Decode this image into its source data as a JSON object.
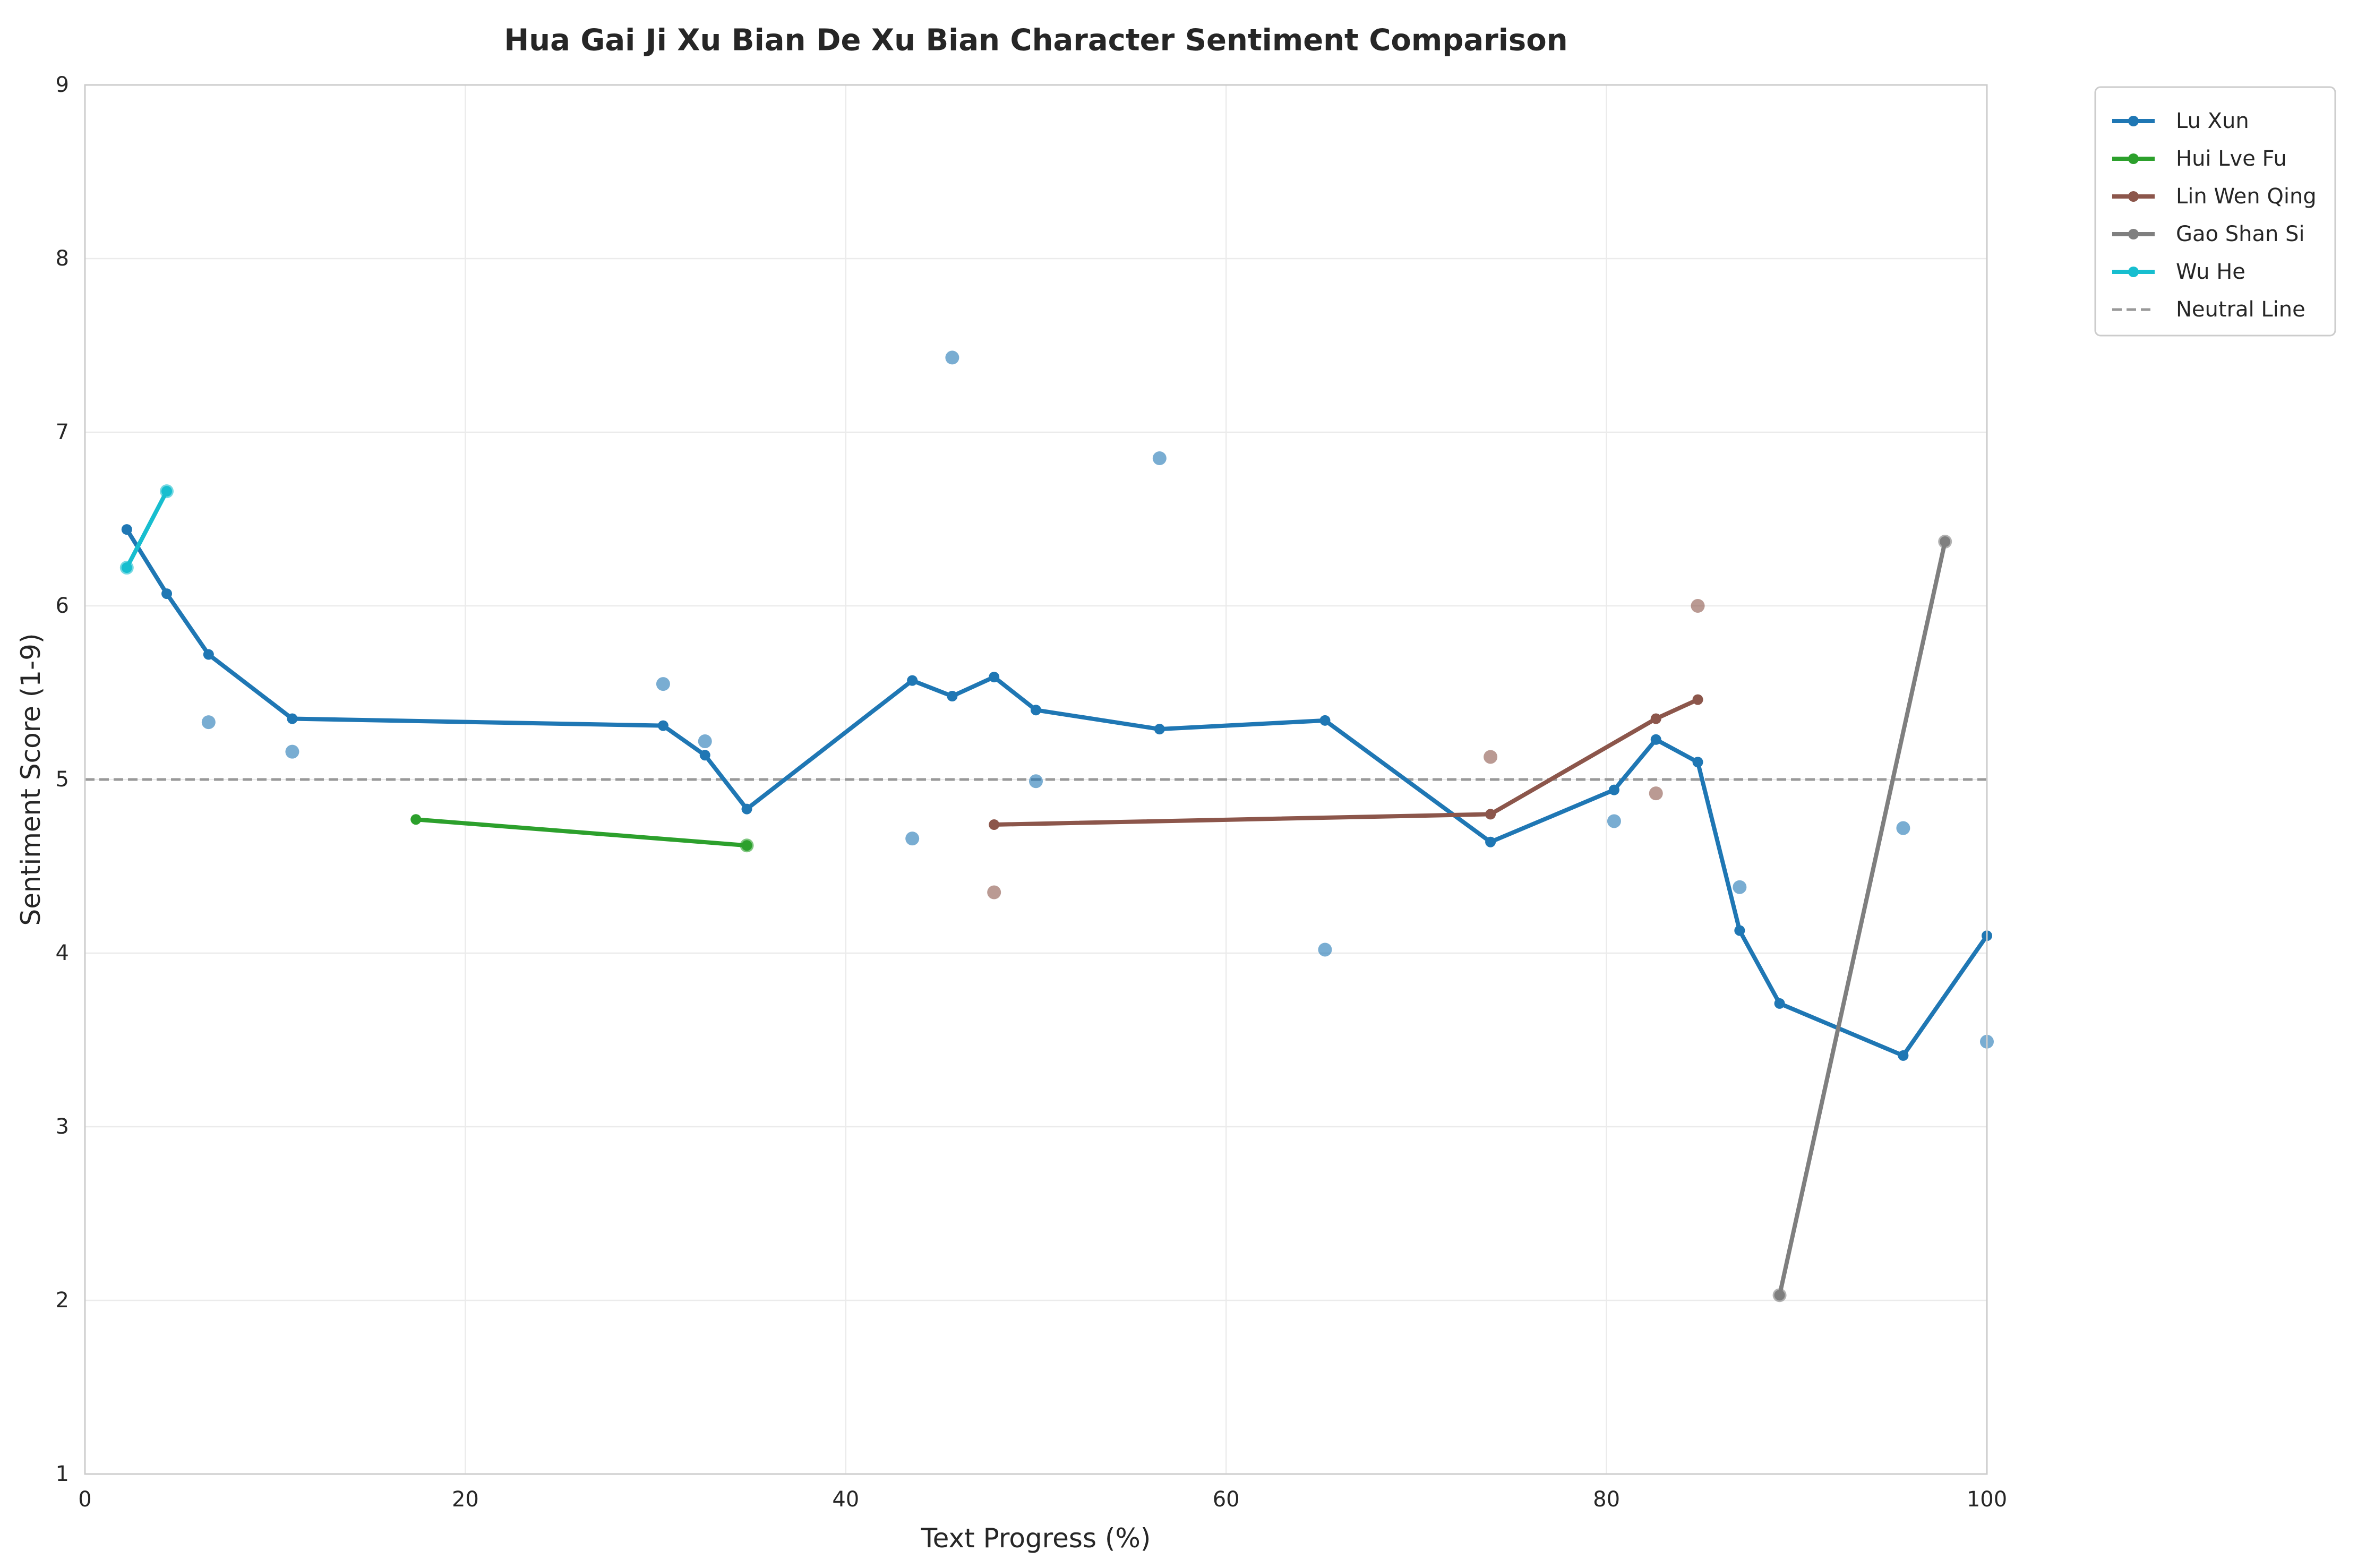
{
  "chart_data": {
    "type": "line",
    "title": "Hua Gai Ji Xu Bian De Xu Bian Character Sentiment Comparison",
    "xlabel": "Text Progress (%)",
    "ylabel": "Sentiment Score (1-9)",
    "xlim": [
      0,
      100
    ],
    "ylim": [
      1,
      9
    ],
    "xticks": [
      "0",
      "20",
      "40",
      "60",
      "80",
      "100"
    ],
    "yticks": [
      "1",
      "2",
      "3",
      "4",
      "5",
      "6",
      "7",
      "8",
      "9"
    ],
    "grid": true,
    "legend_position": "outside-top-right",
    "neutral_line": {
      "name": "Neutral Line",
      "y": 5,
      "color": "#999999"
    },
    "series": [
      {
        "name": "Lu Xun",
        "color": "#1f77b4",
        "points": [
          [
            2.2,
            6.44
          ],
          [
            4.3,
            6.07
          ],
          [
            6.5,
            5.72
          ],
          [
            10.9,
            5.35
          ],
          [
            30.4,
            5.31
          ],
          [
            32.6,
            5.14
          ],
          [
            34.8,
            4.83
          ],
          [
            43.5,
            5.57
          ],
          [
            45.6,
            5.48
          ],
          [
            47.8,
            5.59
          ],
          [
            50.0,
            5.4
          ],
          [
            56.5,
            5.29
          ],
          [
            65.2,
            5.34
          ],
          [
            73.9,
            4.64
          ],
          [
            80.4,
            4.94
          ],
          [
            82.6,
            5.23
          ],
          [
            84.8,
            5.1
          ],
          [
            87.0,
            4.13
          ],
          [
            89.1,
            3.71
          ],
          [
            95.6,
            3.41
          ],
          [
            100.0,
            4.1
          ]
        ],
        "scatter": [
          [
            6.5,
            5.33
          ],
          [
            10.9,
            5.16
          ],
          [
            30.4,
            5.55
          ],
          [
            32.6,
            5.22
          ],
          [
            43.5,
            4.66
          ],
          [
            45.6,
            7.43
          ],
          [
            50.0,
            4.99
          ],
          [
            56.5,
            6.85
          ],
          [
            65.2,
            4.02
          ],
          [
            80.4,
            4.76
          ],
          [
            87.0,
            4.38
          ],
          [
            95.6,
            4.72
          ],
          [
            100.0,
            3.49
          ]
        ]
      },
      {
        "name": "Hui Lve Fu",
        "color": "#2ca02c",
        "points": [
          [
            17.4,
            4.77
          ],
          [
            34.8,
            4.62
          ]
        ],
        "scatter": [
          [
            34.8,
            4.62
          ]
        ]
      },
      {
        "name": "Lin Wen Qing",
        "color": "#8c564b",
        "points": [
          [
            47.8,
            4.74
          ],
          [
            73.9,
            4.8
          ],
          [
            82.6,
            5.35
          ],
          [
            84.8,
            5.46
          ]
        ],
        "scatter": [
          [
            47.8,
            4.35
          ],
          [
            73.9,
            5.13
          ],
          [
            82.6,
            4.92
          ],
          [
            84.8,
            6.0
          ]
        ]
      },
      {
        "name": "Gao Shan Si",
        "color": "#7f7f7f",
        "points": [
          [
            89.1,
            2.03
          ],
          [
            97.8,
            6.37
          ]
        ],
        "scatter": [
          [
            89.1,
            2.03
          ],
          [
            97.8,
            6.37
          ]
        ]
      },
      {
        "name": "Wu He",
        "color": "#17becf",
        "points": [
          [
            2.2,
            6.22
          ],
          [
            4.3,
            6.66
          ]
        ],
        "scatter": [
          [
            2.2,
            6.22
          ],
          [
            4.3,
            6.66
          ]
        ]
      }
    ]
  }
}
